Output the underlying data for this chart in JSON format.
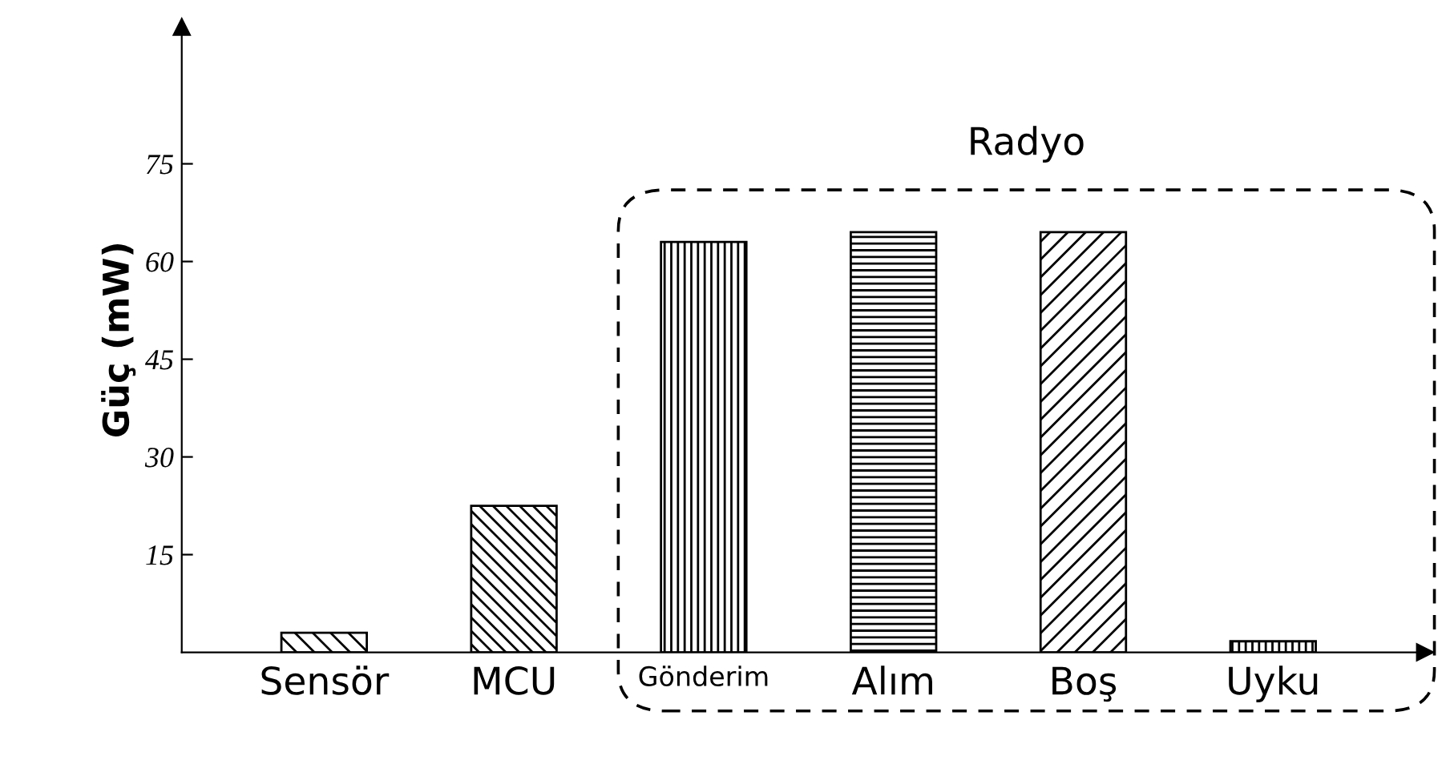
{
  "chart_data": {
    "type": "bar",
    "ylabel": "Güç (mW)",
    "categories": [
      "Sensör",
      "MCU",
      "Gönderim",
      "Alım",
      "Boş",
      "Uyku"
    ],
    "values": [
      3,
      22.5,
      63,
      64.5,
      64.5,
      1.7
    ],
    "color": "#000000",
    "ylim": [
      0,
      96
    ],
    "yticks": [
      15,
      30,
      45,
      60,
      75
    ],
    "grid": false,
    "annotations": [
      "Radyo"
    ]
  }
}
